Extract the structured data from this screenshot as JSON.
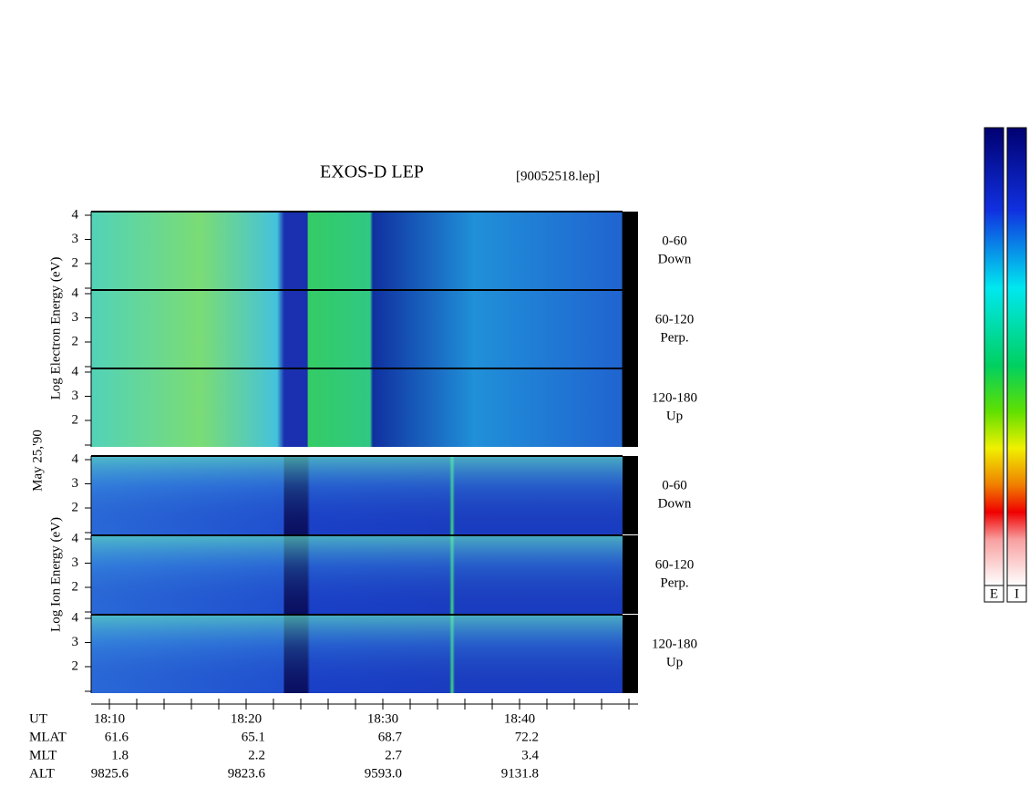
{
  "header": {
    "title": "EXOS-D LEP",
    "file": "[90052518.lep]"
  },
  "date": "May 25,'90",
  "electron_axis_label": "Log Electron Energy (eV)",
  "ion_axis_label": "Log Ion Energy (eV)",
  "panels": [
    {
      "ticks": [
        "4",
        "3",
        "2"
      ],
      "side": [
        "0-60",
        "Down"
      ]
    },
    {
      "ticks": [
        "4",
        "3",
        "2"
      ],
      "side": [
        "60-120",
        "Perp."
      ]
    },
    {
      "ticks": [
        "4",
        "3",
        "2"
      ],
      "side": [
        "120-180",
        "Up"
      ]
    },
    {
      "ticks": [
        "4",
        "3",
        "2"
      ],
      "side": [
        "0-60",
        "Down"
      ]
    },
    {
      "ticks": [
        "4",
        "3",
        "2"
      ],
      "side": [
        "60-120",
        "Perp."
      ]
    },
    {
      "ticks": [
        "4",
        "3",
        "2"
      ],
      "side": [
        "120-180",
        "Up"
      ]
    }
  ],
  "time_axis": {
    "rows": [
      {
        "label": "UT",
        "values": [
          "18:10",
          "18:20",
          "18:30",
          "18:40"
        ]
      },
      {
        "label": "MLAT",
        "values": [
          "61.6",
          "65.1",
          "68.7",
          "72.2"
        ]
      },
      {
        "label": "MLT",
        "values": [
          "1.8",
          "2.2",
          "2.7",
          "3.4"
        ]
      },
      {
        "label": "ALT",
        "values": [
          "9825.6",
          "9823.6",
          "9593.0",
          "9131.8"
        ]
      }
    ]
  },
  "colorbars": [
    "E",
    "I"
  ]
}
